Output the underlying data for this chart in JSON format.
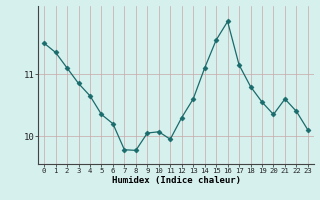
{
  "x": [
    0,
    1,
    2,
    3,
    4,
    5,
    6,
    7,
    8,
    9,
    10,
    11,
    12,
    13,
    14,
    15,
    16,
    17,
    18,
    19,
    20,
    21,
    22,
    23
  ],
  "y": [
    11.5,
    11.35,
    11.1,
    10.85,
    10.65,
    10.35,
    10.2,
    9.78,
    9.77,
    10.05,
    10.07,
    9.95,
    10.3,
    10.6,
    11.1,
    11.55,
    11.85,
    11.15,
    10.8,
    10.55,
    10.35,
    10.6,
    10.4,
    10.1
  ],
  "line_color": "#1a6b6b",
  "marker": "D",
  "marker_size": 2.5,
  "bg_color": "#d6f0ee",
  "grid_color_h": "#c8a8a8",
  "grid_color_v": "#c8a8a8",
  "xlabel": "Humidex (Indice chaleur)",
  "yticks": [
    10,
    11
  ],
  "ylim": [
    9.55,
    12.1
  ],
  "xlim": [
    -0.5,
    23.5
  ],
  "xlabel_fontsize": 6.5,
  "xtick_fontsize": 5.2,
  "ytick_fontsize": 6.5
}
